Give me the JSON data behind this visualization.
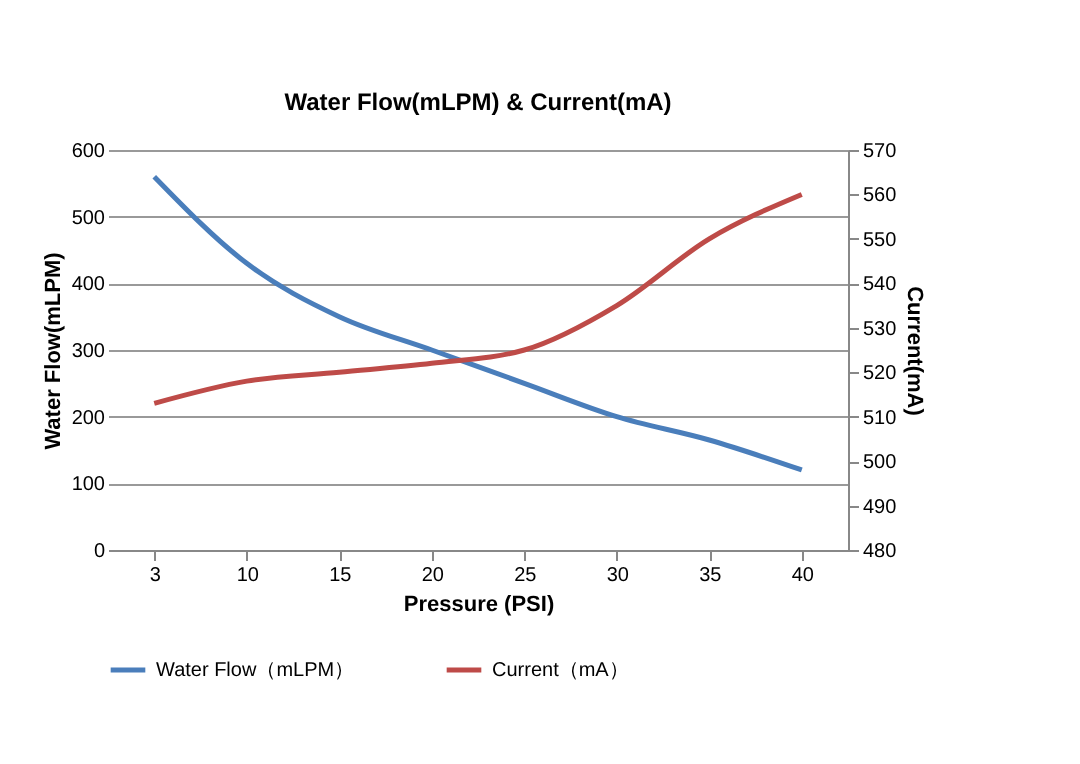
{
  "chart_data": {
    "type": "line",
    "title": "Water Flow(mLPM) & Current(mA)",
    "xlabel": "Pressure (PSI)",
    "ylabel": "Water   Flow(mLPM)",
    "y2label": "Current(mA)",
    "categories": [
      "3",
      "10",
      "15",
      "20",
      "25",
      "30",
      "35",
      "40"
    ],
    "series": [
      {
        "name": "Water Flow（mLPM）",
        "color": "#4a7ebb",
        "values": [
          560,
          430,
          350,
          300,
          250,
          200,
          165,
          120
        ]
      },
      {
        "name": "Current（mA）",
        "color": "#be4b48",
        "axis": "y2",
        "values": [
          513,
          518,
          520,
          522,
          525,
          535,
          550,
          560
        ]
      }
    ],
    "ylim": [
      0,
      600
    ],
    "yticks": [
      0,
      100,
      200,
      300,
      400,
      500,
      600
    ],
    "y2lim": [
      480,
      570
    ],
    "y2ticks": [
      480,
      490,
      500,
      510,
      520,
      530,
      540,
      550,
      560,
      570
    ],
    "grid": "y",
    "legend": "bottom",
    "marker": "none",
    "line_style": "solid"
  }
}
